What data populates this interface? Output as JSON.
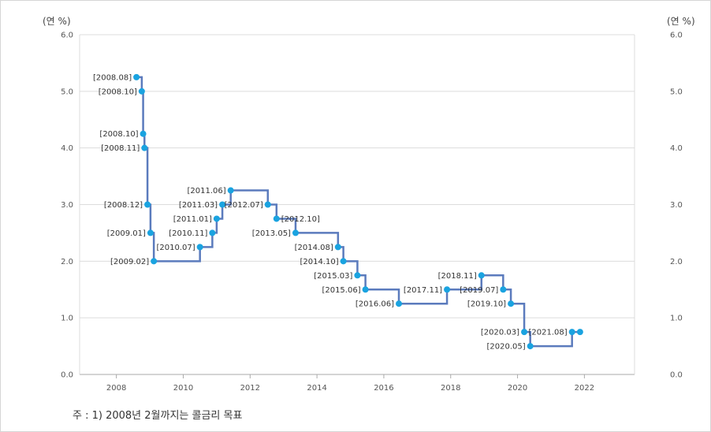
{
  "chart_data": {
    "type": "line",
    "step": true,
    "unit_left": "(연 %)",
    "unit_right": "(연 %)",
    "footnote": "주 : 1) 2008년 2월까지는 콜금리 목표",
    "xlim": [
      2006.9,
      2023.5
    ],
    "ylim": [
      0,
      6
    ],
    "y_ticks": [
      "0.0",
      "1.0",
      "2.0",
      "3.0",
      "4.0",
      "5.0",
      "6.0"
    ],
    "x_ticks": [
      2008,
      2010,
      2012,
      2014,
      2016,
      2018,
      2020,
      2022
    ],
    "grid": "horizontal",
    "line_color": "#5b7bbd",
    "marker_color": "#1aa3e0",
    "points": [
      {
        "label": "[2008.08]",
        "x": 2008.6,
        "y": 5.25,
        "side": "left"
      },
      {
        "label": "[2008.10]",
        "x": 2008.76,
        "y": 5.0,
        "side": "left"
      },
      {
        "label": "[2008.10]",
        "x": 2008.8,
        "y": 4.25,
        "side": "left"
      },
      {
        "label": "[2008.11]",
        "x": 2008.84,
        "y": 4.0,
        "side": "left"
      },
      {
        "label": "[2008.12]",
        "x": 2008.93,
        "y": 3.0,
        "side": "left"
      },
      {
        "label": "[2009.01]",
        "x": 2009.02,
        "y": 2.5,
        "side": "left"
      },
      {
        "label": "[2009.02]",
        "x": 2009.12,
        "y": 2.0,
        "side": "left"
      },
      {
        "label": "[2010.07]",
        "x": 2010.5,
        "y": 2.25,
        "side": "left"
      },
      {
        "label": "[2010.11]",
        "x": 2010.87,
        "y": 2.5,
        "side": "left"
      },
      {
        "label": "[2011.01]",
        "x": 2011.0,
        "y": 2.75,
        "side": "left"
      },
      {
        "label": "[2011.03]",
        "x": 2011.17,
        "y": 3.0,
        "side": "left"
      },
      {
        "label": "[2011.06]",
        "x": 2011.42,
        "y": 3.25,
        "side": "left"
      },
      {
        "label": "[2012.07]",
        "x": 2012.53,
        "y": 3.0,
        "side": "left"
      },
      {
        "label": "[2012.10]",
        "x": 2012.79,
        "y": 2.75,
        "side": "right"
      },
      {
        "label": "[2013.05]",
        "x": 2013.36,
        "y": 2.5,
        "side": "left"
      },
      {
        "label": "[2014.08]",
        "x": 2014.63,
        "y": 2.25,
        "side": "left"
      },
      {
        "label": "[2014.10]",
        "x": 2014.79,
        "y": 2.0,
        "side": "left"
      },
      {
        "label": "[2015.03]",
        "x": 2015.21,
        "y": 1.75,
        "side": "left"
      },
      {
        "label": "[2015.06]",
        "x": 2015.45,
        "y": 1.5,
        "side": "left"
      },
      {
        "label": "[2016.06]",
        "x": 2016.45,
        "y": 1.25,
        "side": "left"
      },
      {
        "label": "[2017.11]",
        "x": 2017.89,
        "y": 1.5,
        "side": "left"
      },
      {
        "label": "[2018.11]",
        "x": 2018.92,
        "y": 1.75,
        "side": "left"
      },
      {
        "label": "[2019.07]",
        "x": 2019.57,
        "y": 1.5,
        "side": "left"
      },
      {
        "label": "[2019.10]",
        "x": 2019.8,
        "y": 1.25,
        "side": "left"
      },
      {
        "label": "[2020.03]",
        "x": 2020.2,
        "y": 0.75,
        "side": "left"
      },
      {
        "label": "[2020.05]",
        "x": 2020.38,
        "y": 0.5,
        "side": "left"
      },
      {
        "label": "[2021.08]",
        "x": 2021.63,
        "y": 0.75,
        "side": "left"
      },
      {
        "label": "",
        "x": 2021.87,
        "y": 0.75,
        "side": "none"
      }
    ]
  }
}
